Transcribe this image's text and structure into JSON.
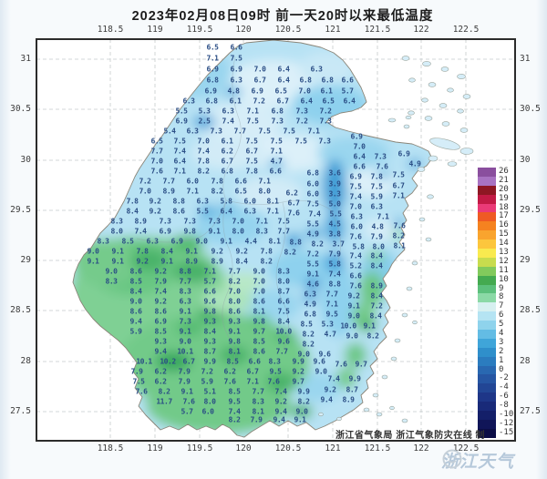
{
  "title": "2023年02月08日09时 前一天20时以来最低温度",
  "axis": {
    "lon_labels": [
      "118.5",
      "119",
      "119.5",
      "120",
      "120.5",
      "121",
      "121.5",
      "122",
      "122.5"
    ],
    "lat_labels": [
      "31",
      "30.5",
      "30",
      "29.5",
      "29",
      "28.5",
      "28",
      "27.5"
    ]
  },
  "legend": [
    [
      "26",
      "#8a4f9e"
    ],
    [
      "21",
      "#a873c2"
    ],
    [
      "20",
      "#8e1723"
    ],
    [
      "19",
      "#c21a45"
    ],
    [
      "18",
      "#ea3a77"
    ],
    [
      "17",
      "#ef5a24"
    ],
    [
      "16",
      "#f58220"
    ],
    [
      "15",
      "#f9a42e"
    ],
    [
      "14",
      "#fcc63d"
    ],
    [
      "13",
      "#f9ea4f"
    ],
    [
      "12",
      "#c8dc4e"
    ],
    [
      "11",
      "#82ca5c"
    ],
    [
      "10",
      "#44aa50"
    ],
    [
      "9",
      "#5cc07c"
    ],
    [
      "8",
      "#8bd9a6"
    ],
    [
      "7",
      "#d7f0f0"
    ],
    [
      "6",
      "#b5e4f3"
    ],
    [
      "5",
      "#8fd3ec"
    ],
    [
      "4",
      "#63bce4"
    ],
    [
      "3",
      "#3fa5d9"
    ],
    [
      "2",
      "#2f8fcb"
    ],
    [
      "1",
      "#2b7cbf"
    ],
    [
      "0",
      "#2968b1"
    ],
    [
      "-2",
      "#2656a3"
    ],
    [
      "-4",
      "#224695"
    ],
    [
      "-6",
      "#1e3688"
    ],
    [
      "-8",
      "#192a79"
    ],
    [
      "-10",
      "#141f69"
    ],
    [
      "-12",
      "#101558"
    ],
    [
      "-15",
      "#0b0d46"
    ]
  ],
  "footer": {
    "attribution": "浙江省气象局 浙江气象防灾在线 制",
    "watermark": "浙江天气"
  },
  "map_colors": {
    "land_base": "#b7e2f4",
    "green": "#72ca89",
    "deep_blue": "#3f9ed6",
    "pale": "#dcf0f9"
  },
  "stations": [
    [
      233,
      52,
      "6.5"
    ],
    [
      259,
      52,
      "6.6"
    ],
    [
      233,
      64,
      "7.1"
    ],
    [
      259,
      64,
      "7.5"
    ],
    [
      233,
      76,
      "6.9"
    ],
    [
      259,
      76,
      "6.9"
    ],
    [
      285,
      76,
      "7.0"
    ],
    [
      311,
      76,
      "6.4"
    ],
    [
      347,
      76,
      "6.3"
    ],
    [
      233,
      88,
      "6.8"
    ],
    [
      259,
      88,
      "6.3"
    ],
    [
      285,
      88,
      "6.7"
    ],
    [
      311,
      88,
      "6.4"
    ],
    [
      335,
      88,
      "6.8"
    ],
    [
      359,
      88,
      "6.8"
    ],
    [
      381,
      88,
      "6.6"
    ],
    [
      231,
      100,
      "6.9"
    ],
    [
      256,
      100,
      "4.8"
    ],
    [
      282,
      100,
      "6.9"
    ],
    [
      308,
      100,
      "6.5"
    ],
    [
      334,
      100,
      "7.0"
    ],
    [
      358,
      100,
      "6.1"
    ],
    [
      381,
      100,
      "5.7"
    ],
    [
      207,
      111,
      "6.3"
    ],
    [
      232,
      111,
      "6.8"
    ],
    [
      258,
      111,
      "6.1"
    ],
    [
      284,
      111,
      "7.2"
    ],
    [
      310,
      111,
      "6.7"
    ],
    [
      336,
      111,
      "6.4"
    ],
    [
      360,
      111,
      "6.5"
    ],
    [
      383,
      111,
      "6.4"
    ],
    [
      199,
      122,
      "5.5"
    ],
    [
      224,
      122,
      "5.3"
    ],
    [
      250,
      122,
      "6.3"
    ],
    [
      277,
      122,
      "7.1"
    ],
    [
      304,
      122,
      "6.8"
    ],
    [
      331,
      122,
      "7.3"
    ],
    [
      357,
      122,
      "7.2"
    ],
    [
      199,
      133,
      "6.9"
    ],
    [
      224,
      133,
      "2.5"
    ],
    [
      250,
      133,
      "7.4"
    ],
    [
      277,
      133,
      "7.5"
    ],
    [
      304,
      133,
      "7.3"
    ],
    [
      331,
      133,
      "7.2"
    ],
    [
      357,
      133,
      "7.3"
    ],
    [
      186,
      144,
      "5.4"
    ],
    [
      211,
      144,
      "6.3"
    ],
    [
      237,
      144,
      "7.3"
    ],
    [
      263,
      144,
      "7.7"
    ],
    [
      290,
      144,
      "7.5"
    ],
    [
      317,
      144,
      "7.5"
    ],
    [
      344,
      144,
      "7.1"
    ],
    [
      391,
      150,
      "6.9"
    ],
    [
      172,
      155,
      "6.5"
    ],
    [
      197,
      155,
      "7.5"
    ],
    [
      223,
      155,
      "7.0"
    ],
    [
      249,
      155,
      "6.1"
    ],
    [
      276,
      155,
      "7.5"
    ],
    [
      303,
      155,
      "7.5"
    ],
    [
      330,
      155,
      "7.5"
    ],
    [
      356,
      155,
      "7.3"
    ],
    [
      394,
      161,
      "7.0"
    ],
    [
      172,
      166,
      "7.7"
    ],
    [
      197,
      166,
      "7.4"
    ],
    [
      223,
      166,
      "7.4"
    ],
    [
      249,
      166,
      "6.2"
    ],
    [
      276,
      166,
      "6.7"
    ],
    [
      303,
      166,
      "7.1"
    ],
    [
      394,
      172,
      "6.4"
    ],
    [
      417,
      172,
      "7.3"
    ],
    [
      443,
      169,
      "6.9"
    ],
    [
      172,
      177,
      "7.0"
    ],
    [
      197,
      177,
      "6.4"
    ],
    [
      223,
      177,
      "7.8"
    ],
    [
      249,
      177,
      "6.7"
    ],
    [
      276,
      177,
      "7.5"
    ],
    [
      303,
      177,
      "4.7"
    ],
    [
      394,
      183,
      "6.6"
    ],
    [
      419,
      183,
      "7.6"
    ],
    [
      455,
      180,
      "4.9"
    ],
    [
      172,
      188,
      "7.6"
    ],
    [
      197,
      188,
      "7.1"
    ],
    [
      223,
      188,
      "8.2"
    ],
    [
      249,
      188,
      "6.8"
    ],
    [
      276,
      188,
      "7.8"
    ],
    [
      302,
      188,
      "6.6"
    ],
    [
      343,
      190,
      "6.8"
    ],
    [
      367,
      190,
      "3.6"
    ],
    [
      390,
      194,
      "6.9"
    ],
    [
      413,
      194,
      "7.8"
    ],
    [
      437,
      192,
      "7.5"
    ],
    [
      159,
      199,
      "7.2"
    ],
    [
      185,
      199,
      "7.7"
    ],
    [
      211,
      199,
      "6.0"
    ],
    [
      238,
      199,
      "7.8"
    ],
    [
      264,
      199,
      "6.6"
    ],
    [
      290,
      199,
      "7.1"
    ],
    [
      343,
      202,
      "6.0"
    ],
    [
      367,
      202,
      "3.9"
    ],
    [
      390,
      205,
      "7.5"
    ],
    [
      413,
      205,
      "7.5"
    ],
    [
      437,
      204,
      "6.7"
    ],
    [
      159,
      210,
      "7.0"
    ],
    [
      185,
      210,
      "8.9"
    ],
    [
      211,
      210,
      "7.1"
    ],
    [
      238,
      210,
      "8.2"
    ],
    [
      264,
      210,
      "6.5"
    ],
    [
      290,
      210,
      "8.0"
    ],
    [
      320,
      212,
      "6.2"
    ],
    [
      343,
      213,
      "6.0"
    ],
    [
      367,
      213,
      "3.3"
    ],
    [
      390,
      216,
      "7.4"
    ],
    [
      413,
      216,
      "5.9"
    ],
    [
      437,
      215,
      "7.1"
    ],
    [
      145,
      221,
      "7.8"
    ],
    [
      170,
      221,
      "9.2"
    ],
    [
      196,
      221,
      "8.8"
    ],
    [
      222,
      221,
      "6.3"
    ],
    [
      248,
      221,
      "5.8"
    ],
    [
      274,
      221,
      "6.0"
    ],
    [
      299,
      221,
      "8.1"
    ],
    [
      322,
      223,
      "6.7"
    ],
    [
      343,
      224,
      "7.5"
    ],
    [
      367,
      224,
      "5.0"
    ],
    [
      390,
      227,
      "7.0"
    ],
    [
      413,
      227,
      "6.3"
    ],
    [
      145,
      232,
      "8.4"
    ],
    [
      170,
      232,
      "9.2"
    ],
    [
      196,
      232,
      "8.6"
    ],
    [
      222,
      232,
      "5.5"
    ],
    [
      248,
      232,
      "6.4"
    ],
    [
      274,
      232,
      "6.3"
    ],
    [
      299,
      232,
      "7.1"
    ],
    [
      322,
      234,
      "7.6"
    ],
    [
      345,
      235,
      "7.4"
    ],
    [
      368,
      235,
      "5.5"
    ],
    [
      391,
      238,
      "6.3"
    ],
    [
      420,
      238,
      "7.1"
    ],
    [
      128,
      243,
      "8.3"
    ],
    [
      154,
      243,
      "8.9"
    ],
    [
      181,
      243,
      "7.3"
    ],
    [
      208,
      243,
      "7.3"
    ],
    [
      235,
      243,
      "7.3"
    ],
    [
      261,
      243,
      "7.0"
    ],
    [
      287,
      243,
      "7.1"
    ],
    [
      311,
      243,
      "7.5"
    ],
    [
      343,
      246,
      "5.5"
    ],
    [
      367,
      246,
      "4.5"
    ],
    [
      391,
      249,
      "6.0"
    ],
    [
      414,
      249,
      "4.8"
    ],
    [
      438,
      248,
      "7.6"
    ],
    [
      128,
      254,
      "8.0"
    ],
    [
      154,
      254,
      "7.4"
    ],
    [
      181,
      254,
      "6.9"
    ],
    [
      208,
      254,
      "9.8"
    ],
    [
      235,
      254,
      "9.1"
    ],
    [
      261,
      254,
      "8.0"
    ],
    [
      287,
      254,
      "8.3"
    ],
    [
      311,
      254,
      "7.7"
    ],
    [
      343,
      257,
      "4.9"
    ],
    [
      367,
      257,
      "3.8"
    ],
    [
      390,
      260,
      "7.6"
    ],
    [
      413,
      260,
      "7.9"
    ],
    [
      437,
      259,
      "8.2"
    ],
    [
      113,
      265,
      "8.3"
    ],
    [
      140,
      265,
      "8.5"
    ],
    [
      167,
      265,
      "6.3"
    ],
    [
      194,
      265,
      "6.9"
    ],
    [
      221,
      265,
      "9.0"
    ],
    [
      248,
      265,
      "9.1"
    ],
    [
      275,
      265,
      "4.4"
    ],
    [
      301,
      265,
      "8.1"
    ],
    [
      324,
      266,
      "8.8"
    ],
    [
      348,
      268,
      "8.2"
    ],
    [
      371,
      268,
      "3.7"
    ],
    [
      393,
      271,
      "5.8"
    ],
    [
      415,
      271,
      "8.0"
    ],
    [
      438,
      270,
      "8.1"
    ],
    [
      102,
      276,
      "9.0"
    ],
    [
      129,
      276,
      "9.1"
    ],
    [
      156,
      276,
      "7.8"
    ],
    [
      183,
      276,
      "8.4"
    ],
    [
      210,
      276,
      "9.1"
    ],
    [
      238,
      276,
      "9.2"
    ],
    [
      265,
      276,
      "9.2"
    ],
    [
      292,
      276,
      "7.8"
    ],
    [
      318,
      277,
      "8.2"
    ],
    [
      343,
      279,
      "7.2"
    ],
    [
      367,
      279,
      "7.9"
    ],
    [
      390,
      281,
      "7.4"
    ],
    [
      413,
      281,
      "8.4"
    ],
    [
      102,
      287,
      "9.1"
    ],
    [
      129,
      287,
      "9.1"
    ],
    [
      156,
      287,
      "9.2"
    ],
    [
      183,
      287,
      "9.1"
    ],
    [
      210,
      287,
      "8.9"
    ],
    [
      238,
      287,
      "8.9"
    ],
    [
      265,
      287,
      "8.4"
    ],
    [
      292,
      287,
      "8.2"
    ],
    [
      343,
      290,
      "5.5"
    ],
    [
      367,
      290,
      "5.8"
    ],
    [
      390,
      292,
      "5.2"
    ],
    [
      413,
      292,
      "8.4"
    ],
    [
      122,
      298,
      "9.0"
    ],
    [
      149,
      298,
      "8.6"
    ],
    [
      176,
      298,
      "9.2"
    ],
    [
      203,
      298,
      "8.8"
    ],
    [
      230,
      298,
      "7.1"
    ],
    [
      257,
      298,
      "7.7"
    ],
    [
      284,
      298,
      "9.0"
    ],
    [
      311,
      298,
      "8.3"
    ],
    [
      343,
      301,
      "9.1"
    ],
    [
      367,
      301,
      "7.4"
    ],
    [
      390,
      303,
      "6.6"
    ],
    [
      122,
      309,
      "8.3"
    ],
    [
      149,
      309,
      "8.5"
    ],
    [
      176,
      309,
      "7.9"
    ],
    [
      203,
      309,
      "7.7"
    ],
    [
      230,
      309,
      "5.7"
    ],
    [
      257,
      309,
      "8.2"
    ],
    [
      284,
      309,
      "7.0"
    ],
    [
      311,
      309,
      "8.0"
    ],
    [
      343,
      312,
      "4.6"
    ],
    [
      367,
      312,
      "8.8"
    ],
    [
      390,
      314,
      "7.6"
    ],
    [
      413,
      314,
      "8.9"
    ],
    [
      149,
      320,
      "8.4"
    ],
    [
      176,
      320,
      "7.4"
    ],
    [
      203,
      320,
      "8.3"
    ],
    [
      230,
      320,
      "6.6"
    ],
    [
      257,
      320,
      "7.0"
    ],
    [
      284,
      320,
      "7.0"
    ],
    [
      311,
      320,
      "8.7"
    ],
    [
      340,
      323,
      "6.3"
    ],
    [
      364,
      323,
      "7.7"
    ],
    [
      388,
      325,
      "9.2"
    ],
    [
      413,
      325,
      "8.4"
    ],
    [
      149,
      331,
      "9.0"
    ],
    [
      176,
      331,
      "9.2"
    ],
    [
      203,
      331,
      "6.3"
    ],
    [
      230,
      331,
      "9.6"
    ],
    [
      257,
      331,
      "8.0"
    ],
    [
      284,
      331,
      "8.6"
    ],
    [
      311,
      331,
      "6.6"
    ],
    [
      340,
      334,
      "4.9"
    ],
    [
      364,
      334,
      "7.1"
    ],
    [
      388,
      336,
      "9.1"
    ],
    [
      413,
      336,
      "7.2"
    ],
    [
      149,
      342,
      "8.6"
    ],
    [
      176,
      342,
      "8.6"
    ],
    [
      203,
      342,
      "9.1"
    ],
    [
      230,
      342,
      "9.8"
    ],
    [
      257,
      342,
      "8.6"
    ],
    [
      284,
      342,
      "8.1"
    ],
    [
      311,
      342,
      "7.5"
    ],
    [
      340,
      345,
      "6.8"
    ],
    [
      364,
      345,
      "9.5"
    ],
    [
      388,
      347,
      "9.0"
    ],
    [
      412,
      347,
      "8.4"
    ],
    [
      149,
      353,
      "9.4"
    ],
    [
      176,
      353,
      "6.9"
    ],
    [
      203,
      353,
      "7.3"
    ],
    [
      230,
      353,
      "9.3"
    ],
    [
      257,
      353,
      "9.3"
    ],
    [
      284,
      353,
      "9.8"
    ],
    [
      311,
      353,
      "8.4"
    ],
    [
      336,
      356,
      "8.5"
    ],
    [
      359,
      356,
      "5.3"
    ],
    [
      382,
      358,
      "10.0"
    ],
    [
      405,
      358,
      "9.1"
    ],
    [
      149,
      364,
      "5.9"
    ],
    [
      176,
      364,
      "8.5"
    ],
    [
      203,
      364,
      "9.1"
    ],
    [
      230,
      364,
      "8.4"
    ],
    [
      257,
      364,
      "9.1"
    ],
    [
      284,
      364,
      "9.7"
    ],
    [
      311,
      364,
      "10.0"
    ],
    [
      338,
      367,
      "8.2"
    ],
    [
      362,
      367,
      "4.7"
    ],
    [
      386,
      369,
      "9.0"
    ],
    [
      409,
      369,
      "8.2"
    ],
    [
      176,
      375,
      "9.3"
    ],
    [
      203,
      375,
      "9.0"
    ],
    [
      230,
      375,
      "9.3"
    ],
    [
      257,
      375,
      "9.8"
    ],
    [
      284,
      375,
      "8.5"
    ],
    [
      311,
      375,
      "9.6"
    ],
    [
      338,
      378,
      "8.2"
    ],
    [
      176,
      386,
      "9.4"
    ],
    [
      203,
      386,
      "10.1"
    ],
    [
      230,
      386,
      "8.7"
    ],
    [
      257,
      386,
      "8.1"
    ],
    [
      284,
      386,
      "8.6"
    ],
    [
      309,
      386,
      "7.7"
    ],
    [
      333,
      389,
      "9.0"
    ],
    [
      356,
      389,
      "9.6"
    ],
    [
      158,
      397,
      "10.1"
    ],
    [
      184,
      397,
      "10.2"
    ],
    [
      207,
      397,
      "6.7"
    ],
    [
      230,
      397,
      "9.9"
    ],
    [
      255,
      397,
      "8.5"
    ],
    [
      279,
      397,
      "6.6"
    ],
    [
      301,
      397,
      "8.3"
    ],
    [
      327,
      397,
      "9.9"
    ],
    [
      350,
      397,
      "9.6"
    ],
    [
      374,
      400,
      "7.6"
    ],
    [
      396,
      400,
      "9.7"
    ],
    [
      150,
      408,
      "7.9"
    ],
    [
      176,
      408,
      "6.2"
    ],
    [
      202,
      408,
      "7.9"
    ],
    [
      227,
      408,
      "7.2"
    ],
    [
      252,
      408,
      "6.2"
    ],
    [
      277,
      408,
      "6.7"
    ],
    [
      302,
      408,
      "9.5"
    ],
    [
      327,
      408,
      "9.2"
    ],
    [
      352,
      408,
      "9.0"
    ],
    [
      152,
      419,
      "7.5"
    ],
    [
      176,
      419,
      "6.2"
    ],
    [
      202,
      419,
      "7.9"
    ],
    [
      227,
      419,
      "5.9"
    ],
    [
      252,
      419,
      "7.6"
    ],
    [
      277,
      419,
      "7.1"
    ],
    [
      300,
      419,
      "7.6"
    ],
    [
      327,
      419,
      "9.7"
    ],
    [
      366,
      416,
      "7.4"
    ],
    [
      389,
      416,
      "9.9"
    ],
    [
      155,
      430,
      "7.6"
    ],
    [
      180,
      430,
      "8.2"
    ],
    [
      205,
      430,
      "9.1"
    ],
    [
      230,
      430,
      "5.1"
    ],
    [
      257,
      430,
      "8.5"
    ],
    [
      283,
      430,
      "7.7"
    ],
    [
      308,
      430,
      "7.4"
    ],
    [
      333,
      430,
      "9.9"
    ],
    [
      362,
      428,
      "9.2"
    ],
    [
      386,
      428,
      "8.7"
    ],
    [
      180,
      441,
      "11.7"
    ],
    [
      207,
      441,
      "7.6"
    ],
    [
      230,
      441,
      "8.0"
    ],
    [
      257,
      441,
      "9.5"
    ],
    [
      283,
      441,
      "8.3"
    ],
    [
      308,
      441,
      "9.2"
    ],
    [
      333,
      441,
      "8.2"
    ],
    [
      358,
      439,
      "9.4"
    ],
    [
      382,
      439,
      "8.9"
    ],
    [
      205,
      452,
      "5.7"
    ],
    [
      228,
      452,
      "6.0"
    ],
    [
      257,
      452,
      "7.4"
    ],
    [
      283,
      452,
      "8.1"
    ],
    [
      308,
      452,
      "9.4"
    ],
    [
      331,
      452,
      "9.0"
    ],
    [
      257,
      461,
      "8.2"
    ],
    [
      281,
      461,
      "7.9"
    ],
    [
      306,
      461,
      "9.4"
    ],
    [
      329,
      461,
      "9.1"
    ]
  ]
}
